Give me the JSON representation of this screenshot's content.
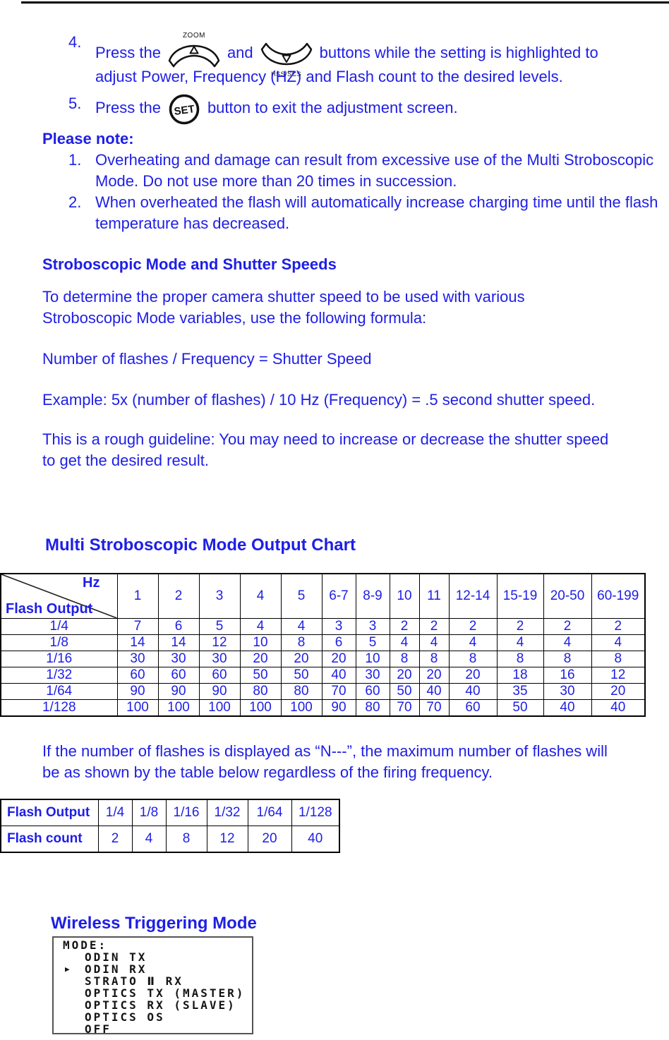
{
  "colors": {
    "text_blue": "#1e1ee6",
    "line_black": "#000000",
    "lcd_text": "#141414"
  },
  "instructions": {
    "step4": {
      "num": "4.",
      "seg1": "Press the",
      "conj": "and",
      "seg2": "buttons while the setting is highlighted to",
      "line2": "adjust Power, Frequency (HZ) and Flash count to the desired levels.",
      "icon1_label": "ZOOM",
      "icon2_label": "HSS/SCS"
    },
    "step5": {
      "num": "5.",
      "seg1": "Press the",
      "seg2": "button to exit the adjustment screen.",
      "icon_label": "SET"
    }
  },
  "please_note": {
    "heading": "Please note:",
    "items": [
      {
        "num": "1.",
        "text": "Overheating and damage can result from excessive use of the Multi Stroboscopic Mode. Do not use more than 20 times in succession."
      },
      {
        "num": "2.",
        "text": "When overheated the flash will automatically increase charging time until the flash temperature has decreased."
      }
    ]
  },
  "strobo": {
    "heading": "Stroboscopic Mode and Shutter Speeds",
    "para1": "To determine the proper camera shutter speed to be used with various Stroboscopic Mode variables, use the following formula:",
    "formula": "Number of flashes / Frequency = Shutter Speed",
    "example": "Example: 5x (number of flashes) / 10 Hz (Frequency) = .5 second shutter speed.",
    "para2": "This is a rough guideline: You may need to increase or decrease the shutter speed to get the desired result."
  },
  "output_chart": {
    "title": "Multi Stroboscopic Mode Output Chart",
    "corner_top": "Hz",
    "corner_bottom": "Flash Output",
    "columns": [
      "1",
      "2",
      "3",
      "4",
      "5",
      "6-7",
      "8-9",
      "10",
      "11",
      "12-14",
      "15-19",
      "20-50",
      "60-199"
    ],
    "rows": [
      {
        "label": "1/4",
        "values": [
          "7",
          "6",
          "5",
          "4",
          "4",
          "3",
          "3",
          "2",
          "2",
          "2",
          "2",
          "2",
          "2"
        ]
      },
      {
        "label": "1/8",
        "values": [
          "14",
          "14",
          "12",
          "10",
          "8",
          "6",
          "5",
          "4",
          "4",
          "4",
          "4",
          "4",
          "4"
        ]
      },
      {
        "label": "1/16",
        "values": [
          "30",
          "30",
          "30",
          "20",
          "20",
          "20",
          "10",
          "8",
          "8",
          "8",
          "8",
          "8",
          "8"
        ]
      },
      {
        "label": "1/32",
        "values": [
          "60",
          "60",
          "60",
          "50",
          "50",
          "40",
          "30",
          "20",
          "20",
          "20",
          "18",
          "16",
          "12"
        ]
      },
      {
        "label": "1/64",
        "values": [
          "90",
          "90",
          "90",
          "80",
          "80",
          "70",
          "60",
          "50",
          "40",
          "40",
          "35",
          "30",
          "20"
        ]
      },
      {
        "label": "1/128",
        "values": [
          "100",
          "100",
          "100",
          "100",
          "100",
          "90",
          "80",
          "70",
          "70",
          "60",
          "50",
          "40",
          "40"
        ]
      }
    ]
  },
  "n_note": "If the number of flashes is displayed as “N---”, the maximum number of flashes will be as shown by the table below regardless of the firing frequency.",
  "max_table": {
    "row1_label": "Flash Output",
    "row1_values": [
      "1/4",
      "1/8",
      "1/16",
      "1/32",
      "1/64",
      "1/128"
    ],
    "row2_label": "Flash count",
    "row2_values": [
      "2",
      "4",
      "8",
      "12",
      "20",
      "40"
    ]
  },
  "wireless": {
    "heading": "Wireless Triggering Mode",
    "lcd": {
      "title": "MODE:",
      "cursor": "▶",
      "items": [
        {
          "label": "ODIN TX",
          "selected": false
        },
        {
          "label": "ODIN RX",
          "selected": true
        },
        {
          "label": "STRATO Ⅱ RX",
          "selected": false
        },
        {
          "label": "OPTICS TX (MASTER)",
          "selected": false
        },
        {
          "label": "OPTICS RX (SLAVE)",
          "selected": false
        },
        {
          "label": "OPTICS OS",
          "selected": false
        },
        {
          "label": "OFF",
          "selected": false
        }
      ]
    }
  }
}
